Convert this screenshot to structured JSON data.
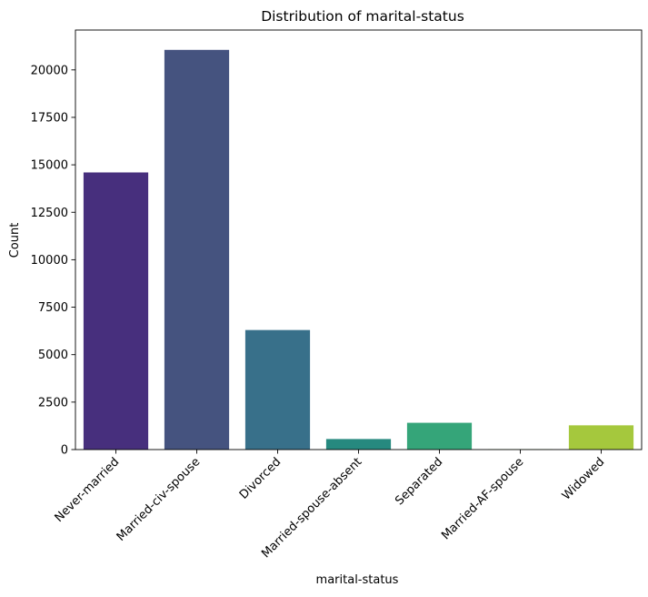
{
  "chart_data": {
    "type": "bar",
    "title": "Distribution of marital-status",
    "xlabel": "marital-status",
    "ylabel": "Count",
    "categories": [
      "Never-married",
      "Married-civ-spouse",
      "Divorced",
      "Married-spouse-absent",
      "Separated",
      "Married-AF-spouse",
      "Widowed"
    ],
    "values": [
      14598,
      21055,
      6297,
      555,
      1411,
      23,
      1277
    ],
    "colors": [
      "#472f7d",
      "#45537f",
      "#38708a",
      "#26897f",
      "#35a579",
      "#7ac64f",
      "#a5c83d"
    ],
    "ylim": [
      0,
      22100
    ],
    "yticks": [
      0,
      2500,
      5000,
      7500,
      10000,
      12500,
      15000,
      17500,
      20000
    ],
    "ytick_labels": [
      "0",
      "2500",
      "5000",
      "7500",
      "10000",
      "12500",
      "15000",
      "17500",
      "20000"
    ],
    "grid": false,
    "legend": "none"
  }
}
